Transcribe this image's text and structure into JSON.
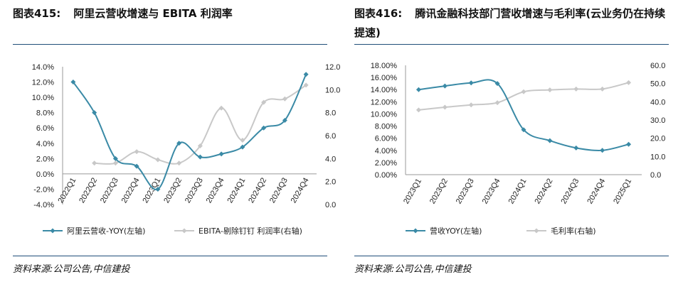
{
  "left": {
    "figure_label": "图表415:",
    "figure_title": "阿里云营收增速与 EBITA 利润率",
    "source": "资料来源:公司公告,中信建投",
    "chart_data": {
      "type": "line",
      "title": "阿里云营收增速与 EBITA 利润率",
      "categories": [
        "2022Q1",
        "2022Q2",
        "2022Q3",
        "2022Q4",
        "2023Q1",
        "2023Q2",
        "2023Q3",
        "2023Q4",
        "2024Q1",
        "2024Q2",
        "2024Q3",
        "2024Q4"
      ],
      "series": [
        {
          "name": "阿里云营收-YOY(左轴)",
          "axis": "left",
          "color": "#3a8aa6",
          "values": [
            12.0,
            8.0,
            2.0,
            1.0,
            -2.0,
            4.0,
            2.2,
            2.6,
            3.5,
            6.0,
            7.0,
            13.0
          ]
        },
        {
          "name": "EBITA-剔除钉钉 利润率(右轴)",
          "axis": "right",
          "color": "#c8c8c8",
          "values": [
            null,
            3.6,
            3.6,
            4.6,
            3.9,
            3.6,
            5.1,
            8.4,
            5.6,
            8.9,
            9.2,
            10.4
          ]
        }
      ],
      "y_left": {
        "ticks": [
          "14.0%",
          "12.0%",
          "10.0%",
          "8.0%",
          "6.0%",
          "4.0%",
          "2.0%",
          "0.0%",
          "-2.0%",
          "-4.0%"
        ],
        "ylim": [
          -4,
          14
        ]
      },
      "y_right": {
        "ticks": [
          "12.0",
          "10.0",
          "8.0",
          "6.0",
          "4.0",
          "2.0",
          "0.0"
        ],
        "ylim": [
          0,
          12
        ]
      },
      "legend_placement": "bottom",
      "grid": false
    }
  },
  "right": {
    "figure_label": "图表416:",
    "figure_title": "腾讯金融科技部门营收增速与毛利率(云业务仍在持续提速)",
    "source": "资料来源:公司公告,中信建投",
    "chart_data": {
      "type": "line",
      "title": "腾讯金融科技部门营收增速与毛利率(云业务仍在持续提速)",
      "categories": [
        "2023Q1",
        "2023Q2",
        "2023Q3",
        "2023Q4",
        "2024Q1",
        "2024Q2",
        "2024Q3",
        "2024Q4",
        "2025Q1"
      ],
      "series": [
        {
          "name": "营收YOY(左轴)",
          "axis": "left",
          "color": "#3a8aa6",
          "values": [
            14.0,
            14.6,
            15.1,
            15.0,
            7.4,
            5.6,
            4.4,
            4.0,
            5.0
          ]
        },
        {
          "name": "毛利率(右轴)",
          "axis": "right",
          "color": "#c8c8c8",
          "values": [
            35.5,
            37.0,
            38.3,
            39.5,
            45.5,
            46.5,
            47.0,
            47.0,
            50.5
          ]
        }
      ],
      "y_left": {
        "ticks": [
          "18.00%",
          "16.00%",
          "14.00%",
          "12.00%",
          "10.00%",
          "8.00%",
          "6.00%",
          "4.00%",
          "2.00%",
          "0.00%"
        ],
        "ylim": [
          0,
          18
        ]
      },
      "y_right": {
        "ticks": [
          "60.0",
          "50.0",
          "40.0",
          "30.0",
          "20.0",
          "10.0",
          "0.0"
        ],
        "ylim": [
          0,
          60
        ]
      },
      "legend_placement": "bottom",
      "grid": false
    }
  }
}
